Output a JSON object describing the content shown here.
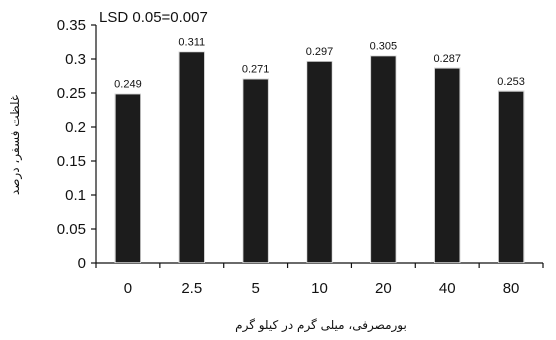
{
  "chart_data": {
    "type": "bar",
    "categories": [
      "0",
      "2.5",
      "5",
      "10",
      "20",
      "40",
      "80"
    ],
    "values": [
      0.249,
      0.311,
      0.271,
      0.297,
      0.305,
      0.287,
      0.253
    ],
    "data_labels": [
      "0.249",
      "0.311",
      "0.271",
      "0.297",
      "0.305",
      "0.287",
      "0.253"
    ],
    "title": "",
    "annotation": "LSD 0.05=0.007",
    "xlabel": "بورمصرفی، میلی گرم در کیلو گرم",
    "ylabel": "غلظت فسفر، درصد",
    "ylim": [
      0,
      0.35
    ],
    "yticks": [
      "0",
      "0.05",
      "0.1",
      "0.15",
      "0.2",
      "0.25",
      "0.3",
      "0.35"
    ],
    "grid": false,
    "legend": "none",
    "bar_color": "#1a1a1a"
  }
}
